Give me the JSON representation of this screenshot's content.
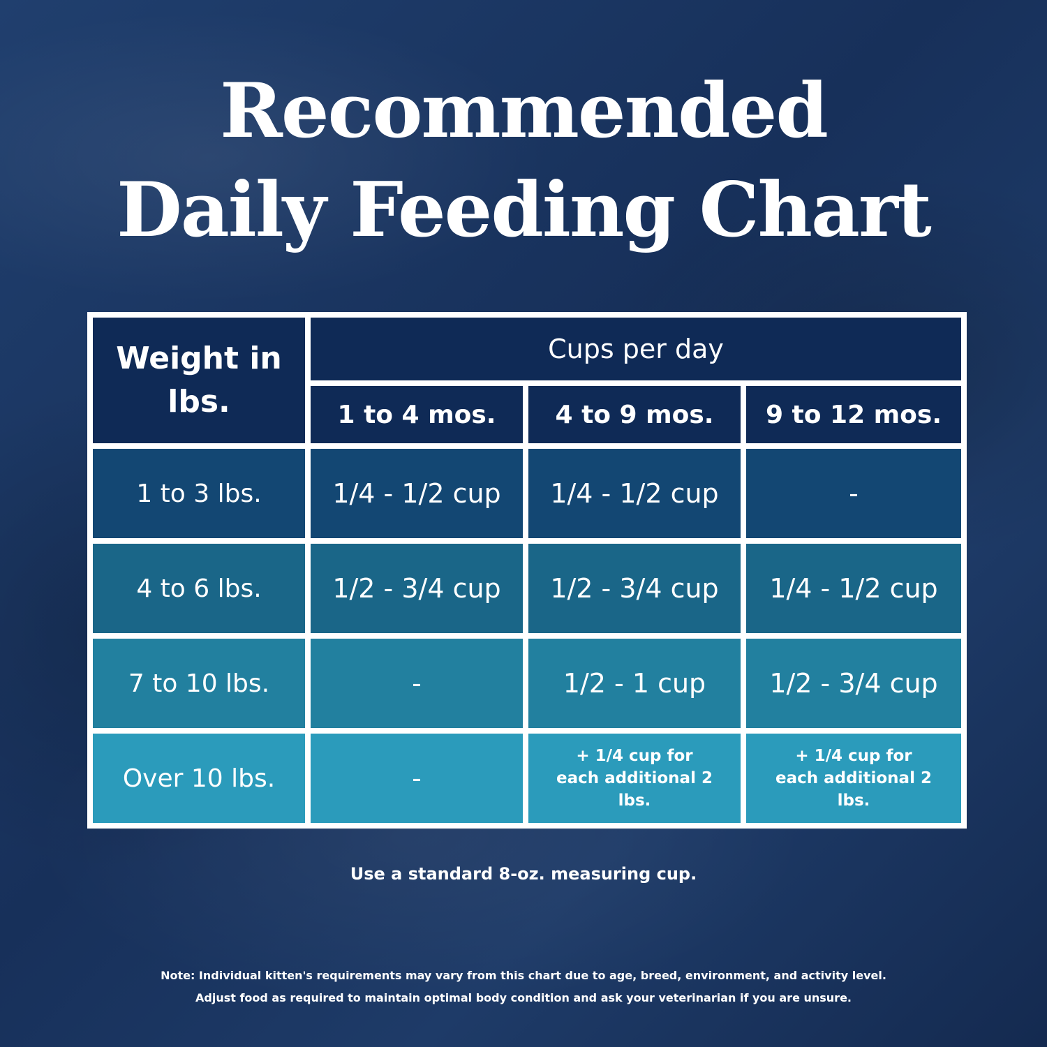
{
  "title": {
    "line1": "Recommended",
    "line2": "Daily Feeding Chart"
  },
  "table": {
    "weight_header": "Weight in lbs.",
    "group_header": "Cups per day",
    "age_columns": [
      "1 to 4 mos.",
      "4 to 9 mos.",
      "9 to 12 mos."
    ],
    "rows": [
      {
        "weight": "1 to 3 lbs.",
        "values": [
          "1/4 - 1/2 cup",
          "1/4 - 1/2 cup",
          "-"
        ]
      },
      {
        "weight": "4 to 6 lbs.",
        "values": [
          "1/2 - 3/4 cup",
          "1/2 - 3/4 cup",
          "1/4 - 1/2 cup"
        ]
      },
      {
        "weight": "7 to 10 lbs.",
        "values": [
          "-",
          "1/2 - 1 cup",
          "1/2 - 3/4 cup"
        ]
      },
      {
        "weight": "Over 10 lbs.",
        "values": [
          "-",
          "+ 1/4 cup for each additional 2 lbs.",
          "+ 1/4 cup for each additional 2 lbs."
        ]
      }
    ]
  },
  "measuring_note": "Use a standard 8-oz. measuring cup.",
  "footnote": {
    "line1": "Note: Individual kitten's requirements may vary from this chart due to age, breed, environment, and activity level.",
    "line2": "Adjust food as required to maintain optimal body condition and ask your veterinarian if you are unsure."
  },
  "colors": {
    "header": "#0f2a56",
    "row1": "#134773",
    "row2": "#1a6688",
    "row3": "#22809f",
    "row4": "#2b9bbb",
    "grid": "#ffffff"
  }
}
